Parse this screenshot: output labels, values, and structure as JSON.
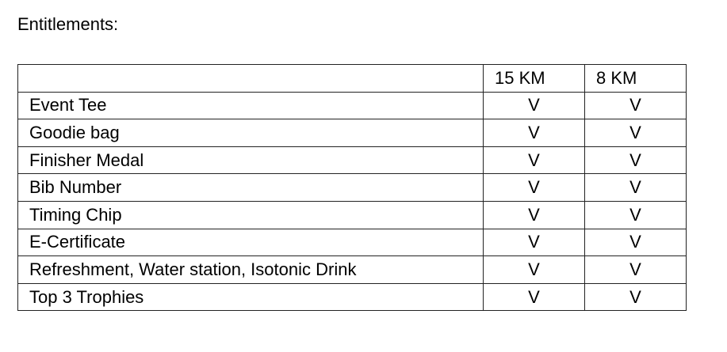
{
  "heading": "Entitlements:",
  "table": {
    "headers": [
      "",
      "15 KM",
      "8 KM"
    ],
    "rows": [
      {
        "item": "Event Tee",
        "km15": "V",
        "km8": "V"
      },
      {
        "item": "Goodie bag",
        "km15": "V",
        "km8": "V"
      },
      {
        "item": "Finisher Medal",
        "km15": "V",
        "km8": "V"
      },
      {
        "item": "Bib Number",
        "km15": "V",
        "km8": "V"
      },
      {
        "item": "Timing Chip",
        "km15": "V",
        "km8": "V"
      },
      {
        "item": "E-Certificate",
        "km15": "V",
        "km8": "V"
      },
      {
        "item": "Refreshment, Water station, Isotonic Drink",
        "km15": "V",
        "km8": "V"
      },
      {
        "item": "Top 3 Trophies",
        "km15": "V",
        "km8": "V"
      }
    ]
  }
}
